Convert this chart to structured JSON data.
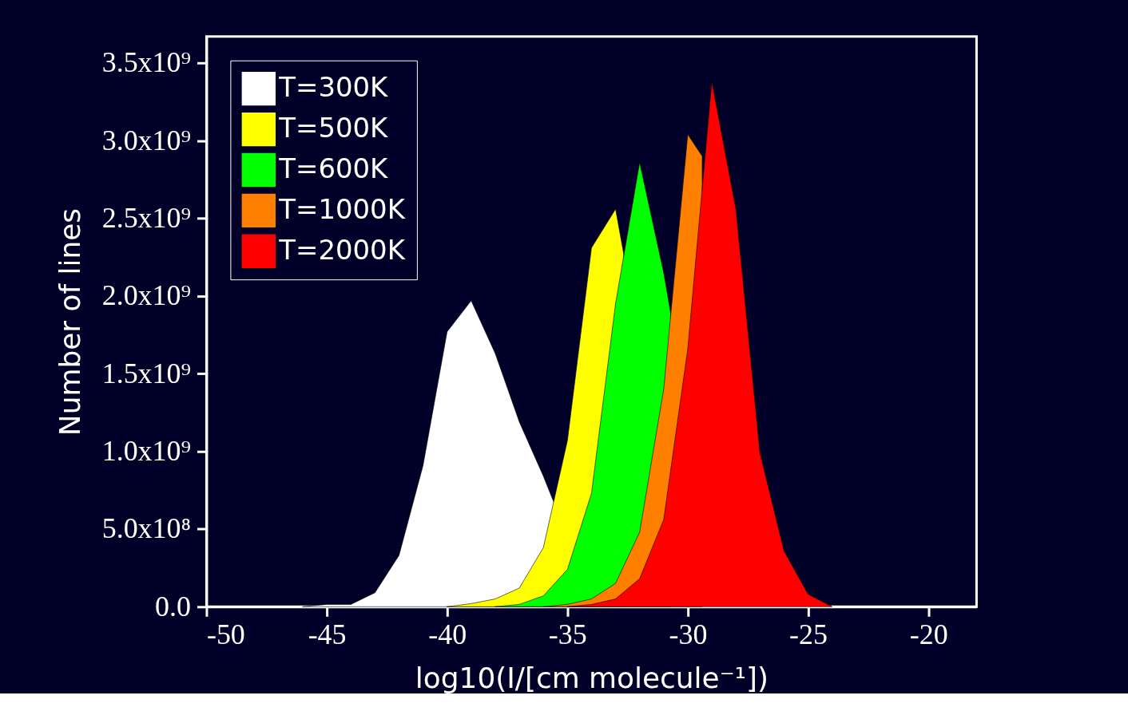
{
  "chart_data": {
    "type": "area",
    "xlabel": "log10(I/[cm molecule⁻¹])",
    "ylabel": "Number of lines",
    "xlim": [
      -50,
      -18
    ],
    "xticks": [
      -50,
      -45,
      -40,
      -35,
      -30,
      -25,
      -20
    ],
    "ylim": [
      0,
      3670000000
    ],
    "yticks": [
      {
        "value": 0,
        "label": "0.0"
      },
      {
        "value": 500000000,
        "label": "5.0x10⁸"
      },
      {
        "value": 1000000000,
        "label": "1.0x10⁹"
      },
      {
        "value": 1500000000,
        "label": "1.5x10⁹"
      },
      {
        "value": 2000000000,
        "label": "2.0x10⁹"
      },
      {
        "value": 2500000000,
        "label": "2.5x10⁹"
      },
      {
        "value": 3000000000,
        "label": "3.0x10⁹"
      },
      {
        "value": 3500000000,
        "label": "3.5x10⁹"
      }
    ],
    "grid": false,
    "legend": "top left",
    "series": [
      {
        "name": "T=300K",
        "color": "#ffffff",
        "x": [
          -46,
          -45,
          -44,
          -43,
          -42,
          -41,
          -40,
          -39,
          -38,
          -37,
          -36,
          -35.56
        ],
        "values": [
          0,
          15000000,
          15000000,
          90000000,
          330000000,
          910000000,
          1770000000,
          1970000000,
          1630000000,
          1190000000,
          840000000,
          670000000
        ]
      },
      {
        "name": "T=500K",
        "color": "#ffff00",
        "x": [
          -40,
          -39,
          -38,
          -37,
          -36,
          -35,
          -34,
          -33,
          -32.66
        ],
        "values": [
          0,
          20000000,
          50000000,
          120000000,
          380000000,
          1070000000,
          2310000000,
          2560000000,
          2270000000
        ]
      },
      {
        "name": "T=600K",
        "color": "#00ff00",
        "x": [
          -38,
          -37,
          -36,
          -35,
          -34,
          -33,
          -32,
          -31,
          -30.71
        ],
        "values": [
          0,
          15000000,
          70000000,
          240000000,
          730000000,
          1950000000,
          2860000000,
          2150000000,
          1890000000
        ]
      },
      {
        "name": "T=1000K",
        "color": "#ff8000",
        "x": [
          -36,
          -35,
          -34,
          -33,
          -32,
          -31,
          -30,
          -29.4
        ],
        "values": [
          0,
          15000000,
          50000000,
          150000000,
          480000000,
          1400000000,
          3040000000,
          2900000000
        ]
      },
      {
        "name": "T=2000K",
        "color": "#ff0000",
        "x": [
          -35,
          -34,
          -33,
          -32,
          -31,
          -30,
          -29,
          -28,
          -27,
          -26,
          -25,
          -24
        ],
        "values": [
          0,
          15000000,
          50000000,
          180000000,
          560000000,
          1660000000,
          3380000000,
          2560000000,
          990000000,
          360000000,
          80000000,
          0
        ]
      }
    ]
  }
}
